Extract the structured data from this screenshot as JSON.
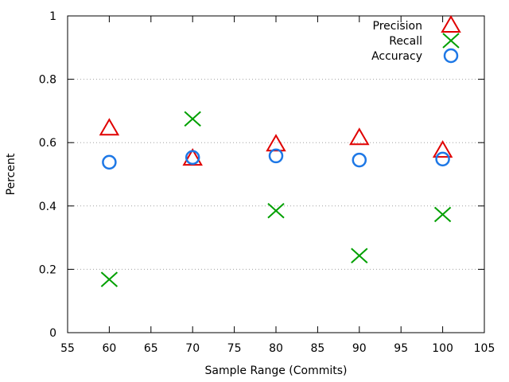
{
  "chart_data": {
    "type": "scatter",
    "xlabel": "Sample Range (Commits)",
    "ylabel": "Percent",
    "xlim": [
      55,
      105
    ],
    "ylim": [
      0,
      1
    ],
    "xticks": [
      55,
      60,
      65,
      70,
      75,
      80,
      85,
      90,
      95,
      100,
      105
    ],
    "yticks": [
      0,
      0.2,
      0.4,
      0.6,
      0.8,
      1
    ],
    "ytick_labels": [
      "0",
      "0.2",
      "0.4",
      "0.6",
      "0.8",
      "1"
    ],
    "grid": "horizontal-dotted",
    "legend_position": "top-right",
    "series": [
      {
        "name": "Precision",
        "marker": "triangle",
        "color": "#e00000",
        "x": [
          60,
          70,
          80,
          90,
          100
        ],
        "y": [
          0.645,
          0.55,
          0.595,
          0.615,
          0.575
        ]
      },
      {
        "name": "Recall",
        "marker": "x",
        "color": "#00a000",
        "x": [
          60,
          70,
          80,
          90,
          100
        ],
        "y": [
          0.168,
          0.675,
          0.385,
          0.243,
          0.373
        ]
      },
      {
        "name": "Accuracy",
        "marker": "circle",
        "color": "#1e78e6",
        "x": [
          60,
          70,
          80,
          90,
          100
        ],
        "y": [
          0.538,
          0.553,
          0.558,
          0.545,
          0.548
        ]
      }
    ]
  }
}
